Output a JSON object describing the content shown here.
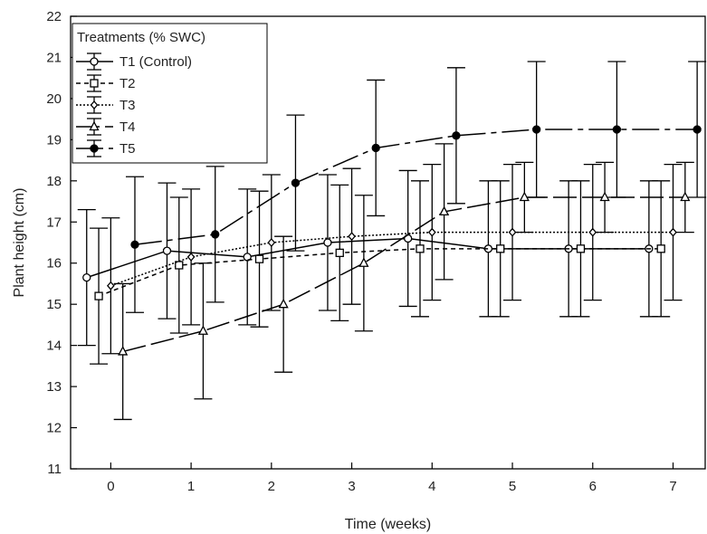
{
  "chart_data": {
    "type": "line",
    "xlabel": "Time (weeks)",
    "ylabel": "Plant height (cm)",
    "xlim": [
      -0.5,
      7.4
    ],
    "ylim": [
      11,
      22
    ],
    "xticks": [
      0,
      1,
      2,
      3,
      4,
      5,
      6,
      7
    ],
    "yticks": [
      11,
      12,
      13,
      14,
      15,
      16,
      17,
      18,
      19,
      20,
      21,
      22
    ],
    "grid": false,
    "legend": {
      "title": "Treatments (% SWC)",
      "placement": "top-left"
    },
    "series": [
      {
        "name": "T1 (Control)",
        "marker": "circle-open",
        "dash": "solid",
        "color": "#000000",
        "x": [
          -0.3,
          0.7,
          1.7,
          2.7,
          3.7,
          4.7,
          5.7,
          6.7
        ],
        "y": [
          15.65,
          16.3,
          16.15,
          16.5,
          16.6,
          16.35,
          16.35,
          16.35
        ],
        "err": [
          1.65,
          1.65,
          1.65,
          1.65,
          1.65,
          1.65,
          1.65,
          1.65
        ]
      },
      {
        "name": "T2",
        "marker": "square-open",
        "dash": "5,4",
        "color": "#000000",
        "x": [
          -0.15,
          0.85,
          1.85,
          2.85,
          3.85,
          4.85,
          5.85,
          6.85
        ],
        "y": [
          15.2,
          15.95,
          16.1,
          16.25,
          16.35,
          16.35,
          16.35,
          16.35
        ],
        "err": [
          1.65,
          1.65,
          1.65,
          1.65,
          1.65,
          1.65,
          1.65,
          1.65
        ]
      },
      {
        "name": "T3",
        "marker": "diamond-open",
        "dash": "2,2",
        "color": "#000000",
        "x": [
          0,
          1,
          2,
          3,
          4,
          5,
          6,
          7
        ],
        "y": [
          15.45,
          16.15,
          16.5,
          16.65,
          16.75,
          16.75,
          16.75,
          16.75
        ],
        "err": [
          1.65,
          1.65,
          1.65,
          1.65,
          1.65,
          1.65,
          1.65,
          1.65
        ]
      },
      {
        "name": "T4",
        "marker": "triangle-open",
        "dash": "26,6",
        "color": "#000000",
        "x": [
          0.15,
          1.15,
          2.15,
          3.15,
          4.15,
          5.15,
          6.15,
          7.15
        ],
        "y": [
          13.85,
          14.35,
          15.0,
          16.0,
          17.25,
          17.6,
          17.6,
          17.6
        ],
        "err": [
          1.65,
          1.65,
          1.65,
          1.65,
          1.65,
          0.85,
          0.85,
          0.85
        ]
      },
      {
        "name": "T5",
        "marker": "circle-filled",
        "dash": "30,6,6,6",
        "color": "#000000",
        "x": [
          0.3,
          1.3,
          2.3,
          3.3,
          4.3,
          5.3,
          6.3,
          7.3
        ],
        "y": [
          16.45,
          16.7,
          17.95,
          18.8,
          19.1,
          19.25,
          19.25,
          19.25
        ],
        "err": [
          1.65,
          1.65,
          1.65,
          1.65,
          1.65,
          1.65,
          1.65,
          1.65
        ]
      }
    ]
  }
}
